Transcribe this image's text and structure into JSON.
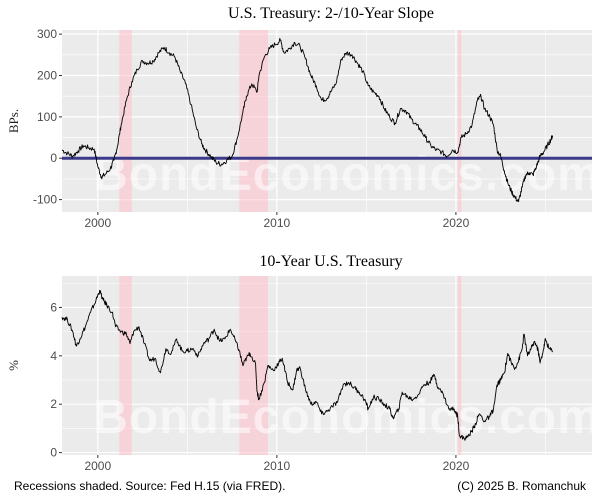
{
  "watermark": "BondEconomics.com",
  "footer": {
    "left": "Recessions shaded. Source: Fed H.15 (via FRED).",
    "right": "(C) 2025 B. Romanchuk"
  },
  "colors": {
    "panel_bg": "#ebebeb",
    "grid": "#ffffff",
    "series": "#000000",
    "zero_line": "#3b3b8a",
    "recession": "#ffc0cb"
  },
  "chart_data": [
    {
      "type": "line",
      "title": "U.S. Treasury: 2-/10-Year Slope",
      "xlabel": "",
      "ylabel": "BPs.",
      "xlim": [
        1998,
        2027.6
      ],
      "ylim": [
        -130,
        310
      ],
      "xticks": [
        2000,
        2010,
        2020
      ],
      "yticks": [
        -100,
        0,
        100,
        200,
        300
      ],
      "grid": true,
      "hline": 0,
      "recessions": [
        [
          2001.2,
          2001.9
        ],
        [
          2007.9,
          2009.5
        ],
        [
          2020.1,
          2020.3
        ]
      ],
      "series": [
        {
          "values": [
            [
              1998.0,
              20
            ],
            [
              1998.3,
              12
            ],
            [
              1998.6,
              5
            ],
            [
              1998.9,
              18
            ],
            [
              1999.2,
              30
            ],
            [
              1999.5,
              25
            ],
            [
              1999.8,
              22
            ],
            [
              2000.0,
              -20
            ],
            [
              2000.2,
              -45
            ],
            [
              2000.4,
              -40
            ],
            [
              2000.7,
              -25
            ],
            [
              2000.9,
              -5
            ],
            [
              2001.1,
              30
            ],
            [
              2001.3,
              80
            ],
            [
              2001.6,
              140
            ],
            [
              2001.9,
              185
            ],
            [
              2002.2,
              215
            ],
            [
              2002.5,
              235
            ],
            [
              2002.8,
              230
            ],
            [
              2003.1,
              235
            ],
            [
              2003.4,
              255
            ],
            [
              2003.7,
              268
            ],
            [
              2004.0,
              255
            ],
            [
              2004.3,
              245
            ],
            [
              2004.6,
              210
            ],
            [
              2004.9,
              180
            ],
            [
              2005.2,
              130
            ],
            [
              2005.5,
              75
            ],
            [
              2005.8,
              35
            ],
            [
              2006.0,
              20
            ],
            [
              2006.3,
              5
            ],
            [
              2006.6,
              -10
            ],
            [
              2006.9,
              -15
            ],
            [
              2007.2,
              -5
            ],
            [
              2007.5,
              5
            ],
            [
              2007.8,
              50
            ],
            [
              2008.1,
              110
            ],
            [
              2008.3,
              150
            ],
            [
              2008.6,
              180
            ],
            [
              2008.9,
              160
            ],
            [
              2009.0,
              200
            ],
            [
              2009.3,
              245
            ],
            [
              2009.6,
              265
            ],
            [
              2009.9,
              275
            ],
            [
              2010.2,
              285
            ],
            [
              2010.4,
              255
            ],
            [
              2010.7,
              265
            ],
            [
              2011.0,
              280
            ],
            [
              2011.3,
              270
            ],
            [
              2011.6,
              240
            ],
            [
              2011.9,
              200
            ],
            [
              2012.2,
              175
            ],
            [
              2012.5,
              140
            ],
            [
              2012.8,
              145
            ],
            [
              2013.0,
              160
            ],
            [
              2013.3,
              180
            ],
            [
              2013.6,
              240
            ],
            [
              2013.9,
              255
            ],
            [
              2014.2,
              250
            ],
            [
              2014.5,
              230
            ],
            [
              2014.8,
              210
            ],
            [
              2015.1,
              175
            ],
            [
              2015.4,
              160
            ],
            [
              2015.7,
              150
            ],
            [
              2016.0,
              120
            ],
            [
              2016.3,
              100
            ],
            [
              2016.6,
              85
            ],
            [
              2016.9,
              120
            ],
            [
              2017.2,
              115
            ],
            [
              2017.5,
              95
            ],
            [
              2017.8,
              80
            ],
            [
              2018.0,
              70
            ],
            [
              2018.3,
              50
            ],
            [
              2018.6,
              30
            ],
            [
              2018.9,
              20
            ],
            [
              2019.2,
              15
            ],
            [
              2019.5,
              5
            ],
            [
              2019.8,
              20
            ],
            [
              2020.1,
              15
            ],
            [
              2020.3,
              50
            ],
            [
              2020.6,
              60
            ],
            [
              2020.9,
              80
            ],
            [
              2021.2,
              140
            ],
            [
              2021.4,
              150
            ],
            [
              2021.6,
              120
            ],
            [
              2021.9,
              100
            ],
            [
              2022.1,
              80
            ],
            [
              2022.3,
              20
            ],
            [
              2022.5,
              5
            ],
            [
              2022.7,
              -30
            ],
            [
              2022.9,
              -60
            ],
            [
              2023.1,
              -80
            ],
            [
              2023.3,
              -95
            ],
            [
              2023.5,
              -105
            ],
            [
              2023.7,
              -70
            ],
            [
              2023.9,
              -40
            ],
            [
              2024.1,
              -35
            ],
            [
              2024.3,
              -40
            ],
            [
              2024.5,
              -20
            ],
            [
              2024.7,
              5
            ],
            [
              2024.9,
              15
            ],
            [
              2025.1,
              30
            ],
            [
              2025.3,
              45
            ],
            [
              2025.4,
              55
            ]
          ]
        }
      ]
    },
    {
      "type": "line",
      "title": "10-Year U.S. Treasury",
      "xlabel": "",
      "ylabel": "%",
      "xlim": [
        1998,
        2027.6
      ],
      "ylim": [
        -0.1,
        7.3
      ],
      "xticks": [
        2000,
        2010,
        2020
      ],
      "yticks": [
        0,
        2,
        4,
        6
      ],
      "grid": true,
      "recessions": [
        [
          2001.2,
          2001.9
        ],
        [
          2007.9,
          2009.5
        ],
        [
          2020.1,
          2020.3
        ]
      ],
      "series": [
        {
          "values": [
            [
              1998.0,
              5.6
            ],
            [
              1998.3,
              5.5
            ],
            [
              1998.6,
              5.0
            ],
            [
              1998.8,
              4.4
            ],
            [
              1999.0,
              4.7
            ],
            [
              1999.3,
              5.2
            ],
            [
              1999.6,
              5.8
            ],
            [
              1999.9,
              6.3
            ],
            [
              2000.1,
              6.7
            ],
            [
              2000.3,
              6.3
            ],
            [
              2000.5,
              6.1
            ],
            [
              2000.8,
              5.8
            ],
            [
              2001.0,
              5.2
            ],
            [
              2001.3,
              5.0
            ],
            [
              2001.6,
              4.9
            ],
            [
              2001.8,
              4.5
            ],
            [
              2002.0,
              5.0
            ],
            [
              2002.3,
              5.2
            ],
            [
              2002.6,
              4.5
            ],
            [
              2002.9,
              3.8
            ],
            [
              2003.2,
              3.9
            ],
            [
              2003.5,
              3.3
            ],
            [
              2003.8,
              4.3
            ],
            [
              2004.1,
              4.1
            ],
            [
              2004.4,
              4.7
            ],
            [
              2004.7,
              4.2
            ],
            [
              2005.0,
              4.2
            ],
            [
              2005.3,
              4.3
            ],
            [
              2005.6,
              4.0
            ],
            [
              2005.9,
              4.5
            ],
            [
              2006.2,
              4.7
            ],
            [
              2006.5,
              5.1
            ],
            [
              2006.8,
              4.6
            ],
            [
              2007.1,
              4.7
            ],
            [
              2007.4,
              5.1
            ],
            [
              2007.7,
              4.6
            ],
            [
              2007.9,
              4.2
            ],
            [
              2008.1,
              3.6
            ],
            [
              2008.3,
              3.9
            ],
            [
              2008.5,
              4.1
            ],
            [
              2008.8,
              3.7
            ],
            [
              2008.9,
              2.5
            ],
            [
              2009.0,
              2.2
            ],
            [
              2009.3,
              2.9
            ],
            [
              2009.5,
              3.6
            ],
            [
              2009.8,
              3.4
            ],
            [
              2010.1,
              3.7
            ],
            [
              2010.3,
              3.9
            ],
            [
              2010.6,
              2.9
            ],
            [
              2010.9,
              2.6
            ],
            [
              2011.1,
              3.4
            ],
            [
              2011.3,
              3.5
            ],
            [
              2011.6,
              2.6
            ],
            [
              2011.9,
              2.0
            ],
            [
              2012.2,
              2.1
            ],
            [
              2012.5,
              1.6
            ],
            [
              2012.8,
              1.7
            ],
            [
              2013.1,
              1.9
            ],
            [
              2013.4,
              2.1
            ],
            [
              2013.7,
              2.8
            ],
            [
              2014.0,
              2.9
            ],
            [
              2014.3,
              2.7
            ],
            [
              2014.6,
              2.5
            ],
            [
              2014.9,
              2.2
            ],
            [
              2015.1,
              1.8
            ],
            [
              2015.4,
              2.3
            ],
            [
              2015.7,
              2.2
            ],
            [
              2016.0,
              2.0
            ],
            [
              2016.3,
              1.8
            ],
            [
              2016.5,
              1.4
            ],
            [
              2016.8,
              1.8
            ],
            [
              2017.0,
              2.5
            ],
            [
              2017.3,
              2.3
            ],
            [
              2017.6,
              2.2
            ],
            [
              2017.9,
              2.4
            ],
            [
              2018.2,
              2.8
            ],
            [
              2018.5,
              2.9
            ],
            [
              2018.8,
              3.2
            ],
            [
              2019.0,
              2.7
            ],
            [
              2019.3,
              2.4
            ],
            [
              2019.6,
              1.8
            ],
            [
              2019.9,
              1.8
            ],
            [
              2020.1,
              1.5
            ],
            [
              2020.2,
              0.7
            ],
            [
              2020.4,
              0.6
            ],
            [
              2020.6,
              0.6
            ],
            [
              2020.9,
              0.9
            ],
            [
              2021.1,
              1.2
            ],
            [
              2021.3,
              1.6
            ],
            [
              2021.6,
              1.3
            ],
            [
              2021.9,
              1.5
            ],
            [
              2022.1,
              1.8
            ],
            [
              2022.3,
              2.8
            ],
            [
              2022.5,
              3.0
            ],
            [
              2022.7,
              3.3
            ],
            [
              2022.9,
              4.1
            ],
            [
              2023.1,
              3.7
            ],
            [
              2023.3,
              3.5
            ],
            [
              2023.5,
              3.8
            ],
            [
              2023.7,
              4.3
            ],
            [
              2023.8,
              4.9
            ],
            [
              2024.0,
              4.0
            ],
            [
              2024.2,
              4.3
            ],
            [
              2024.4,
              4.6
            ],
            [
              2024.6,
              4.2
            ],
            [
              2024.7,
              3.7
            ],
            [
              2024.9,
              4.3
            ],
            [
              2025.0,
              4.7
            ],
            [
              2025.2,
              4.3
            ],
            [
              2025.4,
              4.2
            ]
          ]
        }
      ]
    }
  ]
}
